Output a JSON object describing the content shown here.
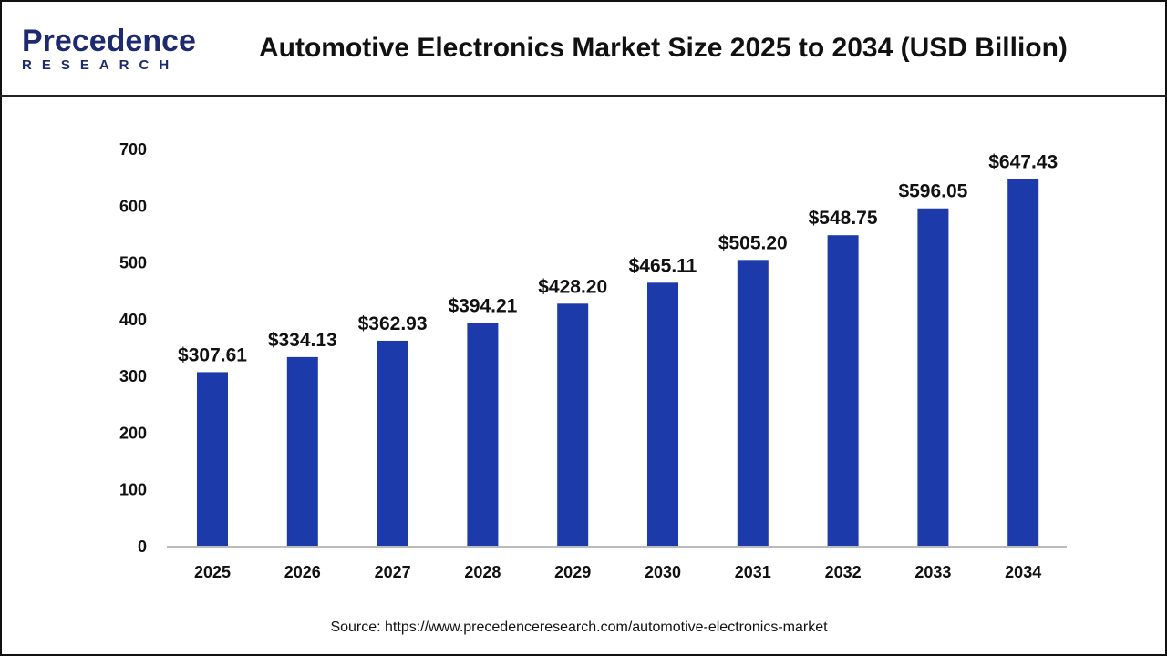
{
  "header": {
    "logo_text": "Precedence",
    "logo_sub": "RESEARCH",
    "title": "Automotive Electronics Market Size 2025 to 2034 (USD Billion)"
  },
  "source": "Source: https://www.precedenceresearch.com/automotive-electronics-market",
  "chart_data": {
    "type": "bar",
    "title": "Automotive Electronics Market Size 2025 to 2034 (USD Billion)",
    "categories": [
      "2025",
      "2026",
      "2027",
      "2028",
      "2029",
      "2030",
      "2031",
      "2032",
      "2033",
      "2034"
    ],
    "values": [
      307.61,
      334.13,
      362.93,
      394.21,
      428.2,
      465.11,
      505.2,
      548.75,
      596.05,
      647.43
    ],
    "data_labels": [
      "$307.61",
      "$334.13",
      "$362.93",
      "$394.21",
      "$428.20",
      "$465.11",
      "$505.20",
      "$548.75",
      "$596.05",
      "$647.43"
    ],
    "yticks": [
      "0",
      "100",
      "200",
      "300",
      "400",
      "500",
      "600",
      "700"
    ],
    "ylim": [
      0,
      700
    ],
    "grid": false,
    "bar_color": "#1c3aa9",
    "xlabel": "",
    "ylabel": ""
  }
}
